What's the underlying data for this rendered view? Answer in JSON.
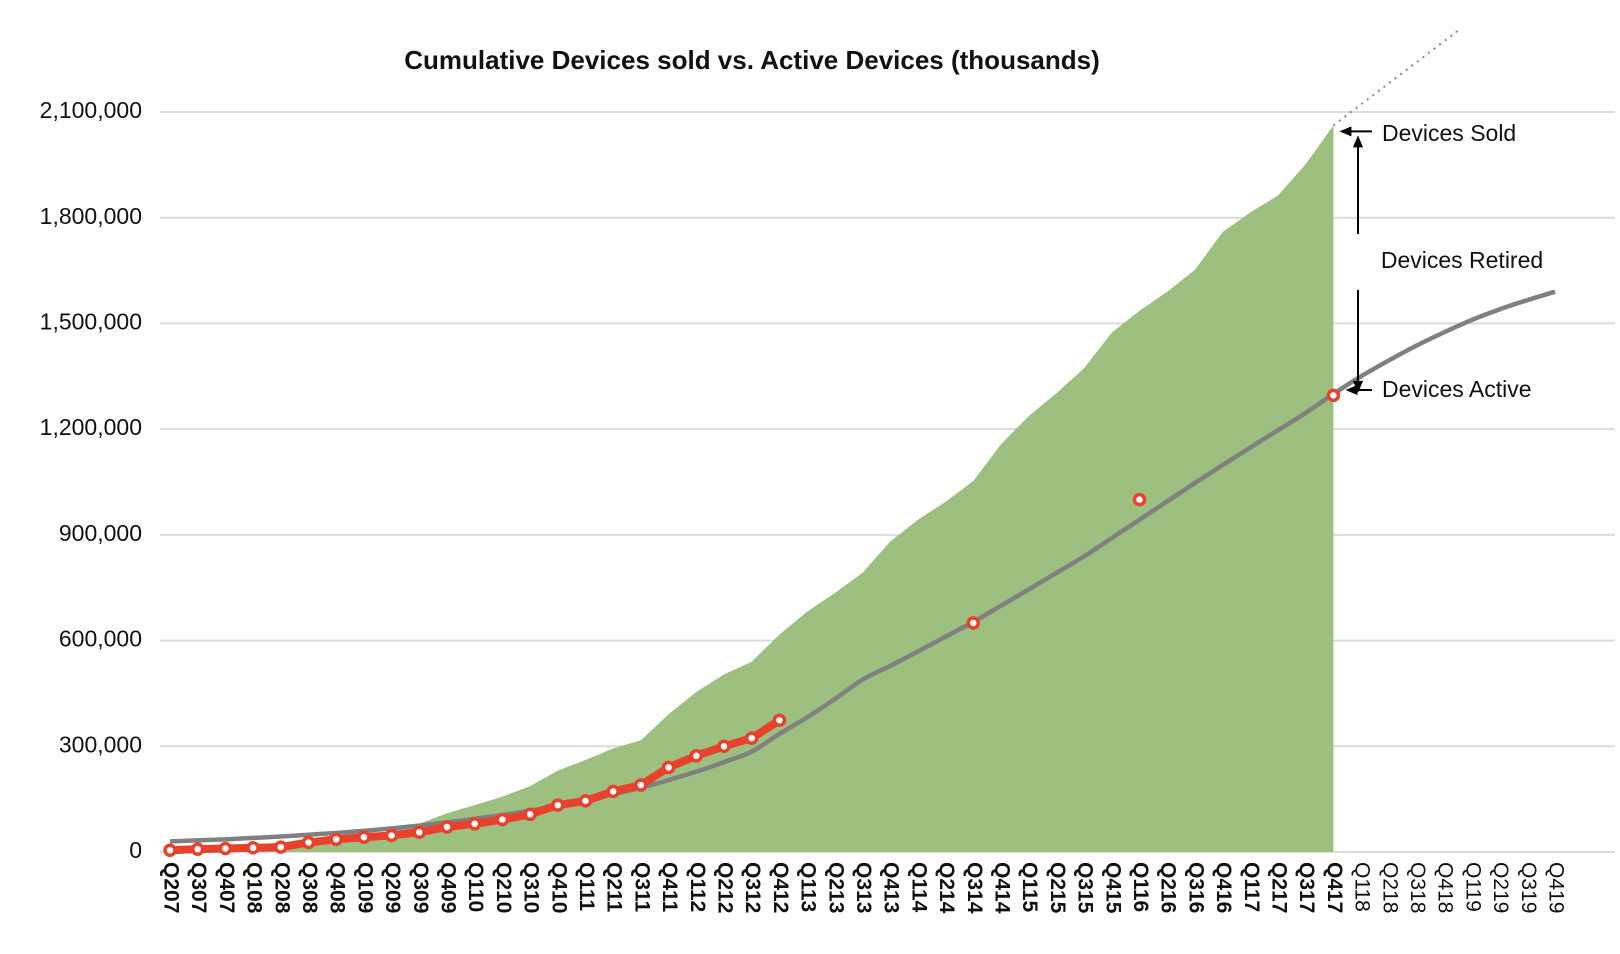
{
  "chart_data": {
    "type": "area",
    "title": "Cumulative Devices sold vs. Active Devices (thousands)",
    "categories": [
      "Q207",
      "Q307",
      "Q407",
      "Q108",
      "Q208",
      "Q308",
      "Q408",
      "Q109",
      "Q209",
      "Q309",
      "Q409",
      "Q110",
      "Q210",
      "Q310",
      "Q410",
      "Q111",
      "Q211",
      "Q311",
      "Q411",
      "Q112",
      "Q212",
      "Q312",
      "Q412",
      "Q113",
      "Q213",
      "Q313",
      "Q413",
      "Q114",
      "Q214",
      "Q314",
      "Q414",
      "Q115",
      "Q215",
      "Q315",
      "Q415",
      "Q116",
      "Q216",
      "Q316",
      "Q416",
      "Q117",
      "Q217",
      "Q317",
      "Q417",
      "Q118",
      "Q218",
      "Q318",
      "Q418",
      "Q119",
      "Q219",
      "Q319",
      "Q419"
    ],
    "series": [
      {
        "name": "Devices Sold",
        "color": "#9dbf7f",
        "values": [
          2000,
          4000,
          8000,
          12000,
          17000,
          24000,
          33000,
          45000,
          60000,
          80000,
          110000,
          133000,
          157000,
          187000,
          231000,
          261000,
          294000,
          317000,
          391000,
          454000,
          504000,
          540000,
          617000,
          682000,
          735000,
          792000,
          881000,
          943000,
          994000,
          1053000,
          1157000,
          1237000,
          1302000,
          1373000,
          1474000,
          1536000,
          1590000,
          1652000,
          1759000,
          1815000,
          1863000,
          1952000,
          2062000,
          null,
          null,
          null,
          null,
          null,
          null,
          null,
          null
        ]
      },
      {
        "name": "Devices Active",
        "color": "#808080",
        "values": [
          30000,
          33000,
          36000,
          40000,
          44000,
          49000,
          54000,
          60000,
          67000,
          75000,
          84000,
          94000,
          105000,
          117000,
          131000,
          147000,
          164000,
          182000,
          204000,
          228000,
          255000,
          285000,
          335000,
          382000,
          434000,
          489000,
          528000,
          569000,
          611000,
          653000,
          699000,
          745000,
          792000,
          839000,
          891000,
          943000,
          995000,
          1047000,
          1098000,
          1148000,
          1197000,
          1246000,
          1300000,
          1350000,
          1395000,
          1437000,
          1475000,
          1510000,
          1540000,
          1566000,
          1590000
        ]
      },
      {
        "color": "#e8412c",
        "values": [
          5000,
          8000,
          10000,
          12000,
          14000,
          27000,
          36000,
          42000,
          47000,
          56000,
          71000,
          80000,
          92000,
          107000,
          133000,
          145000,
          172000,
          190000,
          240000,
          273000,
          300000,
          323000,
          374000,
          null,
          null,
          null,
          null,
          null,
          null,
          650000,
          null,
          null,
          null,
          null,
          null,
          1000000,
          null,
          null,
          null,
          null,
          null,
          null,
          1296000,
          null,
          null,
          null,
          null,
          null,
          null,
          null,
          null
        ]
      }
    ],
    "annotations": [
      "Devices Retired"
    ],
    "ylim": [
      0,
      2100000
    ],
    "yticks": [
      0,
      {
        "value": 300000,
        "label": "300,000"
      },
      {
        "value": 600000,
        "label": "600,000"
      },
      {
        "value": 900000,
        "label": "900,000"
      },
      {
        "value": 1200000,
        "label": "1,200,000"
      },
      {
        "value": 1500000,
        "label": "1,500,000"
      },
      {
        "value": 1800000,
        "label": "1,800,000"
      },
      {
        "value": 2100000,
        "label": "2,100,000"
      }
    ],
    "grid": true
  }
}
